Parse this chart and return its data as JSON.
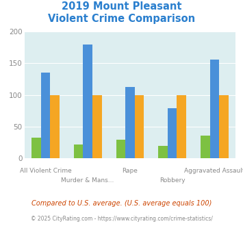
{
  "title_line1": "2019 Mount Pleasant",
  "title_line2": "Violent Crime Comparison",
  "categories": [
    "All Violent Crime",
    "Murder & Mans...",
    "Rape",
    "Robbery",
    "Aggravated Assault"
  ],
  "series": {
    "Mount Pleasant": [
      32,
      22,
      29,
      20,
      36
    ],
    "South Carolina": [
      135,
      180,
      113,
      79,
      156
    ],
    "National": [
      100,
      100,
      100,
      100,
      100
    ]
  },
  "colors": {
    "Mount Pleasant": "#7dc142",
    "South Carolina": "#4a90d9",
    "National": "#f5a623"
  },
  "ylim": [
    0,
    200
  ],
  "yticks": [
    0,
    50,
    100,
    150,
    200
  ],
  "bg_color": "#ddeef0",
  "title_color": "#2a7fce",
  "tick_color": "#888888",
  "legend_label_color": "#222222",
  "footnote1": "Compared to U.S. average. (U.S. average equals 100)",
  "footnote2": "© 2025 CityRating.com - https://www.cityrating.com/crime-statistics/",
  "footnote1_color": "#cc4400",
  "footnote2_color": "#888888",
  "staggered_labels_top": [
    "All Violent Crime",
    "",
    "Rape",
    "",
    "Aggravated Assault"
  ],
  "staggered_labels_bot": [
    "",
    "Murder & Mans...",
    "",
    "Robbery",
    ""
  ]
}
